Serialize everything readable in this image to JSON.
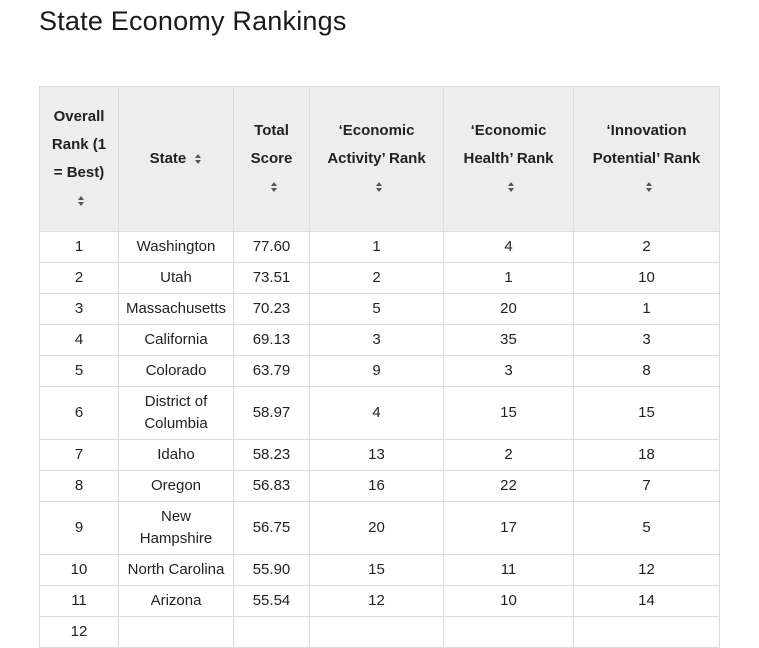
{
  "page": {
    "title": "State Economy Rankings"
  },
  "table": {
    "columns": [
      {
        "label": "Overall Rank (1 = Best)"
      },
      {
        "label": "State"
      },
      {
        "label": "Total Score"
      },
      {
        "label": "‘Economic Activity’ Rank"
      },
      {
        "label": "‘Economic Health’ Rank"
      },
      {
        "label": "‘Innovation Potential’ Rank"
      }
    ],
    "rows": [
      [
        "1",
        "Washington",
        "77.60",
        "1",
        "4",
        "2"
      ],
      [
        "2",
        "Utah",
        "73.51",
        "2",
        "1",
        "10"
      ],
      [
        "3",
        "Massachusetts",
        "70.23",
        "5",
        "20",
        "1"
      ],
      [
        "4",
        "California",
        "69.13",
        "3",
        "35",
        "3"
      ],
      [
        "5",
        "Colorado",
        "63.79",
        "9",
        "3",
        "8"
      ],
      [
        "6",
        "District of Columbia",
        "58.97",
        "4",
        "15",
        "15"
      ],
      [
        "7",
        "Idaho",
        "58.23",
        "13",
        "2",
        "18"
      ],
      [
        "8",
        "Oregon",
        "56.83",
        "16",
        "22",
        "7"
      ],
      [
        "9",
        "New Hampshire",
        "56.75",
        "20",
        "17",
        "5"
      ],
      [
        "10",
        "North Carolina",
        "55.90",
        "15",
        "11",
        "12"
      ],
      [
        "11",
        "Arizona",
        "55.54",
        "12",
        "10",
        "14"
      ],
      [
        "12",
        "",
        "",
        "",
        "",
        ""
      ]
    ]
  }
}
